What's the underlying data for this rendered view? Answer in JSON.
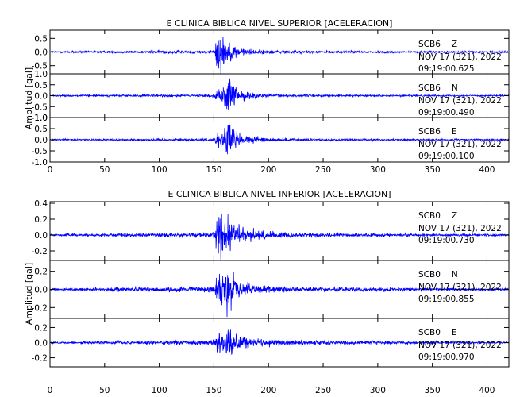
{
  "chart_data": [
    {
      "type": "line",
      "title": "E CLINICA BIBLICA NIVEL SUPERIOR [ACELERACION]",
      "ylabel": "Amplitud [gal]",
      "xlabel": "",
      "x_ticks": [
        0,
        50,
        100,
        150,
        200,
        250,
        300,
        350,
        400
      ],
      "xlim": [
        0,
        420
      ],
      "grid": false,
      "trace_color": "#0000ff",
      "series": [
        {
          "station": "SCB6",
          "component": "Z",
          "date": "NOV 17 (321), 2022",
          "time": "09:19:00.625",
          "ylim": [
            -0.8,
            0.8
          ],
          "y_ticks": [
            -0.5,
            0.0,
            0.5
          ],
          "y_tick_labels": [
            "-0.5",
            "0.0",
            "0.5"
          ],
          "noise": 0.03,
          "x": [
            0,
            151,
            152,
            155,
            160,
            165,
            170,
            180,
            200,
            230,
            270,
            420
          ],
          "y": [
            0.03,
            0.06,
            0.55,
            0.75,
            0.4,
            0.3,
            0.2,
            0.1,
            0.06,
            0.05,
            0.04,
            0.03
          ]
        },
        {
          "station": "SCB6",
          "component": "N",
          "date": "NOV 17 (321), 2022",
          "time": "09:19:00.490",
          "ylim": [
            -1.0,
            1.0
          ],
          "y_ticks": [
            -1.0,
            -0.5,
            0.0,
            0.5,
            1.0
          ],
          "y_tick_labels": [
            "-1.0",
            "-0.5",
            "0.0",
            "0.5",
            "1.0"
          ],
          "noise": 0.03,
          "x": [
            0,
            151,
            152,
            158,
            162,
            166,
            170,
            180,
            200,
            230,
            270,
            420
          ],
          "y": [
            0.03,
            0.06,
            0.25,
            0.3,
            0.85,
            0.6,
            0.35,
            0.15,
            0.07,
            0.05,
            0.04,
            0.03
          ]
        },
        {
          "station": "SCB6",
          "component": "E",
          "date": "NOV 17 (321), 2022",
          "time": "09:19:00.100",
          "ylim": [
            -1.0,
            1.0
          ],
          "y_ticks": [
            -1.0,
            -0.5,
            0.0,
            0.5,
            1.0
          ],
          "y_tick_labels": [
            "-1.0",
            "-0.5",
            "0.0",
            "0.5",
            "1.0"
          ],
          "noise": 0.03,
          "x": [
            0,
            151,
            152,
            158,
            163,
            167,
            172,
            182,
            200,
            230,
            270,
            420
          ],
          "y": [
            0.03,
            0.06,
            0.35,
            0.45,
            0.8,
            0.55,
            0.35,
            0.15,
            0.07,
            0.05,
            0.04,
            0.03
          ]
        }
      ]
    },
    {
      "type": "line",
      "title": "E CLINICA BIBLICA NIVEL INFERIOR [ACELERACION]",
      "ylabel": "Amplitud [gal]",
      "xlabel": "",
      "x_ticks": [
        0,
        50,
        100,
        150,
        200,
        250,
        300,
        350,
        400
      ],
      "xlim": [
        0,
        420
      ],
      "grid": false,
      "trace_color": "#0000ff",
      "series": [
        {
          "station": "SCB0",
          "component": "Z",
          "date": "NOV 17 (321), 2022",
          "time": "09:19:00.730",
          "ylim": [
            -0.32,
            0.42
          ],
          "y_ticks": [
            -0.2,
            0.0,
            0.2,
            0.4
          ],
          "y_tick_labels": [
            "-0.2",
            "0.0",
            "0.2",
            "0.4"
          ],
          "noise": 0.012,
          "x": [
            0,
            151,
            152,
            156,
            160,
            163,
            167,
            175,
            190,
            220,
            270,
            420
          ],
          "y": [
            0.012,
            0.03,
            0.2,
            0.3,
            0.15,
            0.4,
            0.18,
            0.09,
            0.05,
            0.03,
            0.02,
            0.012
          ]
        },
        {
          "station": "SCB0",
          "component": "N",
          "date": "NOV 17 (321), 2022",
          "time": "09:19:00.855",
          "ylim": [
            -0.32,
            0.32
          ],
          "y_ticks": [
            -0.2,
            0.0,
            0.2
          ],
          "y_tick_labels": [
            "-0.2",
            "0.0",
            "0.2"
          ],
          "noise": 0.012,
          "x": [
            0,
            151,
            152,
            156,
            160,
            163,
            167,
            175,
            190,
            220,
            270,
            420
          ],
          "y": [
            0.012,
            0.03,
            0.15,
            0.2,
            0.1,
            0.3,
            0.16,
            0.08,
            0.045,
            0.03,
            0.02,
            0.012
          ]
        },
        {
          "station": "SCB0",
          "component": "E",
          "date": "NOV 17 (321), 2022",
          "time": "09:19:00.970",
          "ylim": [
            -0.32,
            0.32
          ],
          "y_ticks": [
            -0.2,
            0.0,
            0.2
          ],
          "y_tick_labels": [
            "-0.2",
            "0.0",
            "0.2"
          ],
          "noise": 0.012,
          "x": [
            0,
            151,
            152,
            156,
            160,
            163,
            167,
            175,
            190,
            220,
            270,
            420
          ],
          "y": [
            0.012,
            0.03,
            0.15,
            0.2,
            0.1,
            0.31,
            0.16,
            0.08,
            0.045,
            0.03,
            0.02,
            0.012
          ]
        }
      ]
    }
  ]
}
